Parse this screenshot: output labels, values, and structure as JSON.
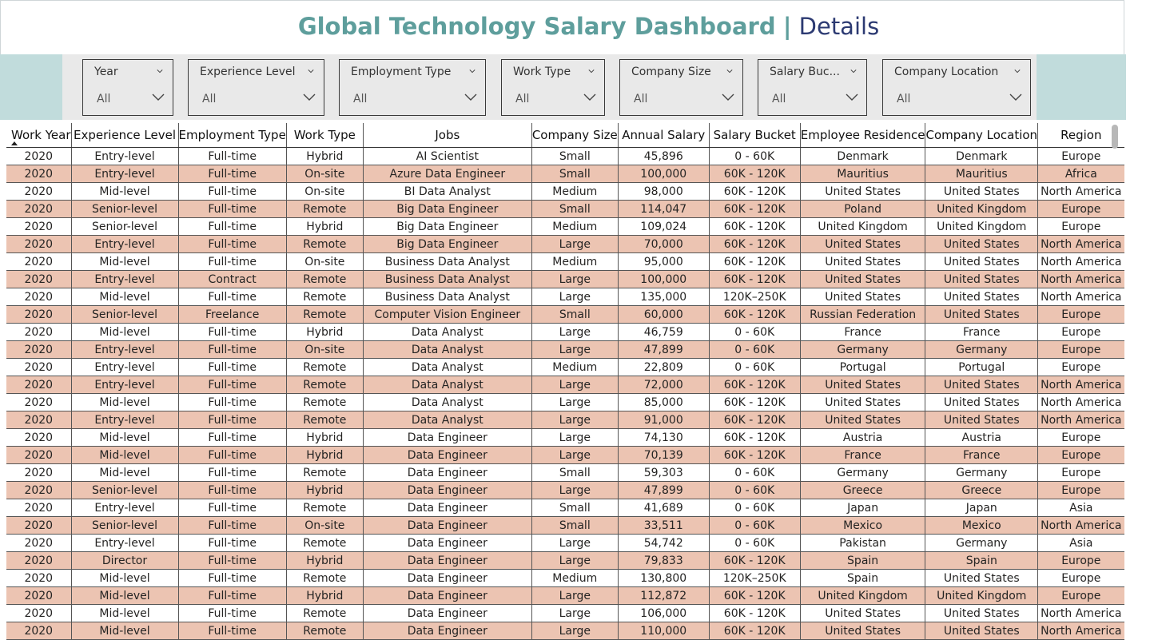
{
  "header": {
    "title_main": "Global Technology Salary Dashboard",
    "separator": "|",
    "title_sub": "Details"
  },
  "filters": [
    {
      "label": "Year",
      "value": "All"
    },
    {
      "label": "Experience Level",
      "value": "All"
    },
    {
      "label": "Employment Type",
      "value": "All"
    },
    {
      "label": "Work Type",
      "value": "All"
    },
    {
      "label": "Company Size",
      "value": "All"
    },
    {
      "label": "Salary Buc...",
      "value": "All"
    },
    {
      "label": "Company Location",
      "value": "All"
    }
  ],
  "table": {
    "columns": [
      "Work Year",
      "Experience Level",
      "Employment Type",
      "Work Type",
      "Jobs",
      "Company Size",
      "Annual Salary",
      "Salary Bucket",
      "Employee Residence",
      "Company Location",
      "Region"
    ],
    "rows": [
      [
        "2020",
        "Entry-level",
        "Full-time",
        "Hybrid",
        "AI Scientist",
        "Small",
        "45,896",
        "0 - 60K",
        "Denmark",
        "Denmark",
        "Europe"
      ],
      [
        "2020",
        "Entry-level",
        "Full-time",
        "On-site",
        "Azure Data Engineer",
        "Small",
        "100,000",
        "60K - 120K",
        "Mauritius",
        "Mauritius",
        "Africa"
      ],
      [
        "2020",
        "Mid-level",
        "Full-time",
        "On-site",
        "BI Data Analyst",
        "Medium",
        "98,000",
        "60K - 120K",
        "United States",
        "United States",
        "North America"
      ],
      [
        "2020",
        "Senior-level",
        "Full-time",
        "Remote",
        "Big Data Engineer",
        "Small",
        "114,047",
        "60K - 120K",
        "Poland",
        "United Kingdom",
        "Europe"
      ],
      [
        "2020",
        "Senior-level",
        "Full-time",
        "Hybrid",
        "Big Data Engineer",
        "Medium",
        "109,024",
        "60K - 120K",
        "United Kingdom",
        "United Kingdom",
        "Europe"
      ],
      [
        "2020",
        "Entry-level",
        "Full-time",
        "Remote",
        "Big Data Engineer",
        "Large",
        "70,000",
        "60K - 120K",
        "United States",
        "United States",
        "North America"
      ],
      [
        "2020",
        "Mid-level",
        "Full-time",
        "On-site",
        "Business Data Analyst",
        "Medium",
        "95,000",
        "60K - 120K",
        "United States",
        "United States",
        "North America"
      ],
      [
        "2020",
        "Entry-level",
        "Contract",
        "Remote",
        "Business Data Analyst",
        "Large",
        "100,000",
        "60K - 120K",
        "United States",
        "United States",
        "North America"
      ],
      [
        "2020",
        "Mid-level",
        "Full-time",
        "Remote",
        "Business Data Analyst",
        "Large",
        "135,000",
        "120K–250K",
        "United States",
        "United States",
        "North America"
      ],
      [
        "2020",
        "Senior-level",
        "Freelance",
        "Remote",
        "Computer Vision Engineer",
        "Small",
        "60,000",
        "60K - 120K",
        "Russian Federation",
        "United States",
        "Europe"
      ],
      [
        "2020",
        "Mid-level",
        "Full-time",
        "Hybrid",
        "Data Analyst",
        "Large",
        "46,759",
        "0 - 60K",
        "France",
        "France",
        "Europe"
      ],
      [
        "2020",
        "Entry-level",
        "Full-time",
        "On-site",
        "Data Analyst",
        "Large",
        "47,899",
        "0 - 60K",
        "Germany",
        "Germany",
        "Europe"
      ],
      [
        "2020",
        "Entry-level",
        "Full-time",
        "Remote",
        "Data Analyst",
        "Medium",
        "22,809",
        "0 - 60K",
        "Portugal",
        "Portugal",
        "Europe"
      ],
      [
        "2020",
        "Entry-level",
        "Full-time",
        "Remote",
        "Data Analyst",
        "Large",
        "72,000",
        "60K - 120K",
        "United States",
        "United States",
        "North America"
      ],
      [
        "2020",
        "Mid-level",
        "Full-time",
        "Remote",
        "Data Analyst",
        "Large",
        "85,000",
        "60K - 120K",
        "United States",
        "United States",
        "North America"
      ],
      [
        "2020",
        "Entry-level",
        "Full-time",
        "Remote",
        "Data Analyst",
        "Large",
        "91,000",
        "60K - 120K",
        "United States",
        "United States",
        "North America"
      ],
      [
        "2020",
        "Mid-level",
        "Full-time",
        "Hybrid",
        "Data Engineer",
        "Large",
        "74,130",
        "60K - 120K",
        "Austria",
        "Austria",
        "Europe"
      ],
      [
        "2020",
        "Mid-level",
        "Full-time",
        "Hybrid",
        "Data Engineer",
        "Large",
        "70,139",
        "60K - 120K",
        "France",
        "France",
        "Europe"
      ],
      [
        "2020",
        "Mid-level",
        "Full-time",
        "Remote",
        "Data Engineer",
        "Small",
        "59,303",
        "0 - 60K",
        "Germany",
        "Germany",
        "Europe"
      ],
      [
        "2020",
        "Senior-level",
        "Full-time",
        "Hybrid",
        "Data Engineer",
        "Large",
        "47,899",
        "0 - 60K",
        "Greece",
        "Greece",
        "Europe"
      ],
      [
        "2020",
        "Entry-level",
        "Full-time",
        "Remote",
        "Data Engineer",
        "Small",
        "41,689",
        "0 - 60K",
        "Japan",
        "Japan",
        "Asia"
      ],
      [
        "2020",
        "Senior-level",
        "Full-time",
        "On-site",
        "Data Engineer",
        "Small",
        "33,511",
        "0 - 60K",
        "Mexico",
        "Mexico",
        "North America"
      ],
      [
        "2020",
        "Entry-level",
        "Full-time",
        "Remote",
        "Data Engineer",
        "Large",
        "54,742",
        "0 - 60K",
        "Pakistan",
        "Germany",
        "Asia"
      ],
      [
        "2020",
        "Director",
        "Full-time",
        "Hybrid",
        "Data Engineer",
        "Large",
        "79,833",
        "60K - 120K",
        "Spain",
        "Spain",
        "Europe"
      ],
      [
        "2020",
        "Mid-level",
        "Full-time",
        "Remote",
        "Data Engineer",
        "Medium",
        "130,800",
        "120K–250K",
        "Spain",
        "United States",
        "Europe"
      ],
      [
        "2020",
        "Mid-level",
        "Full-time",
        "Hybrid",
        "Data Engineer",
        "Large",
        "112,872",
        "60K - 120K",
        "United Kingdom",
        "United Kingdom",
        "Europe"
      ],
      [
        "2020",
        "Mid-level",
        "Full-time",
        "Remote",
        "Data Engineer",
        "Large",
        "106,000",
        "60K - 120K",
        "United States",
        "United States",
        "North America"
      ],
      [
        "2020",
        "Mid-level",
        "Full-time",
        "Remote",
        "Data Engineer",
        "Large",
        "110,000",
        "60K - 120K",
        "United States",
        "United States",
        "North America"
      ]
    ]
  }
}
